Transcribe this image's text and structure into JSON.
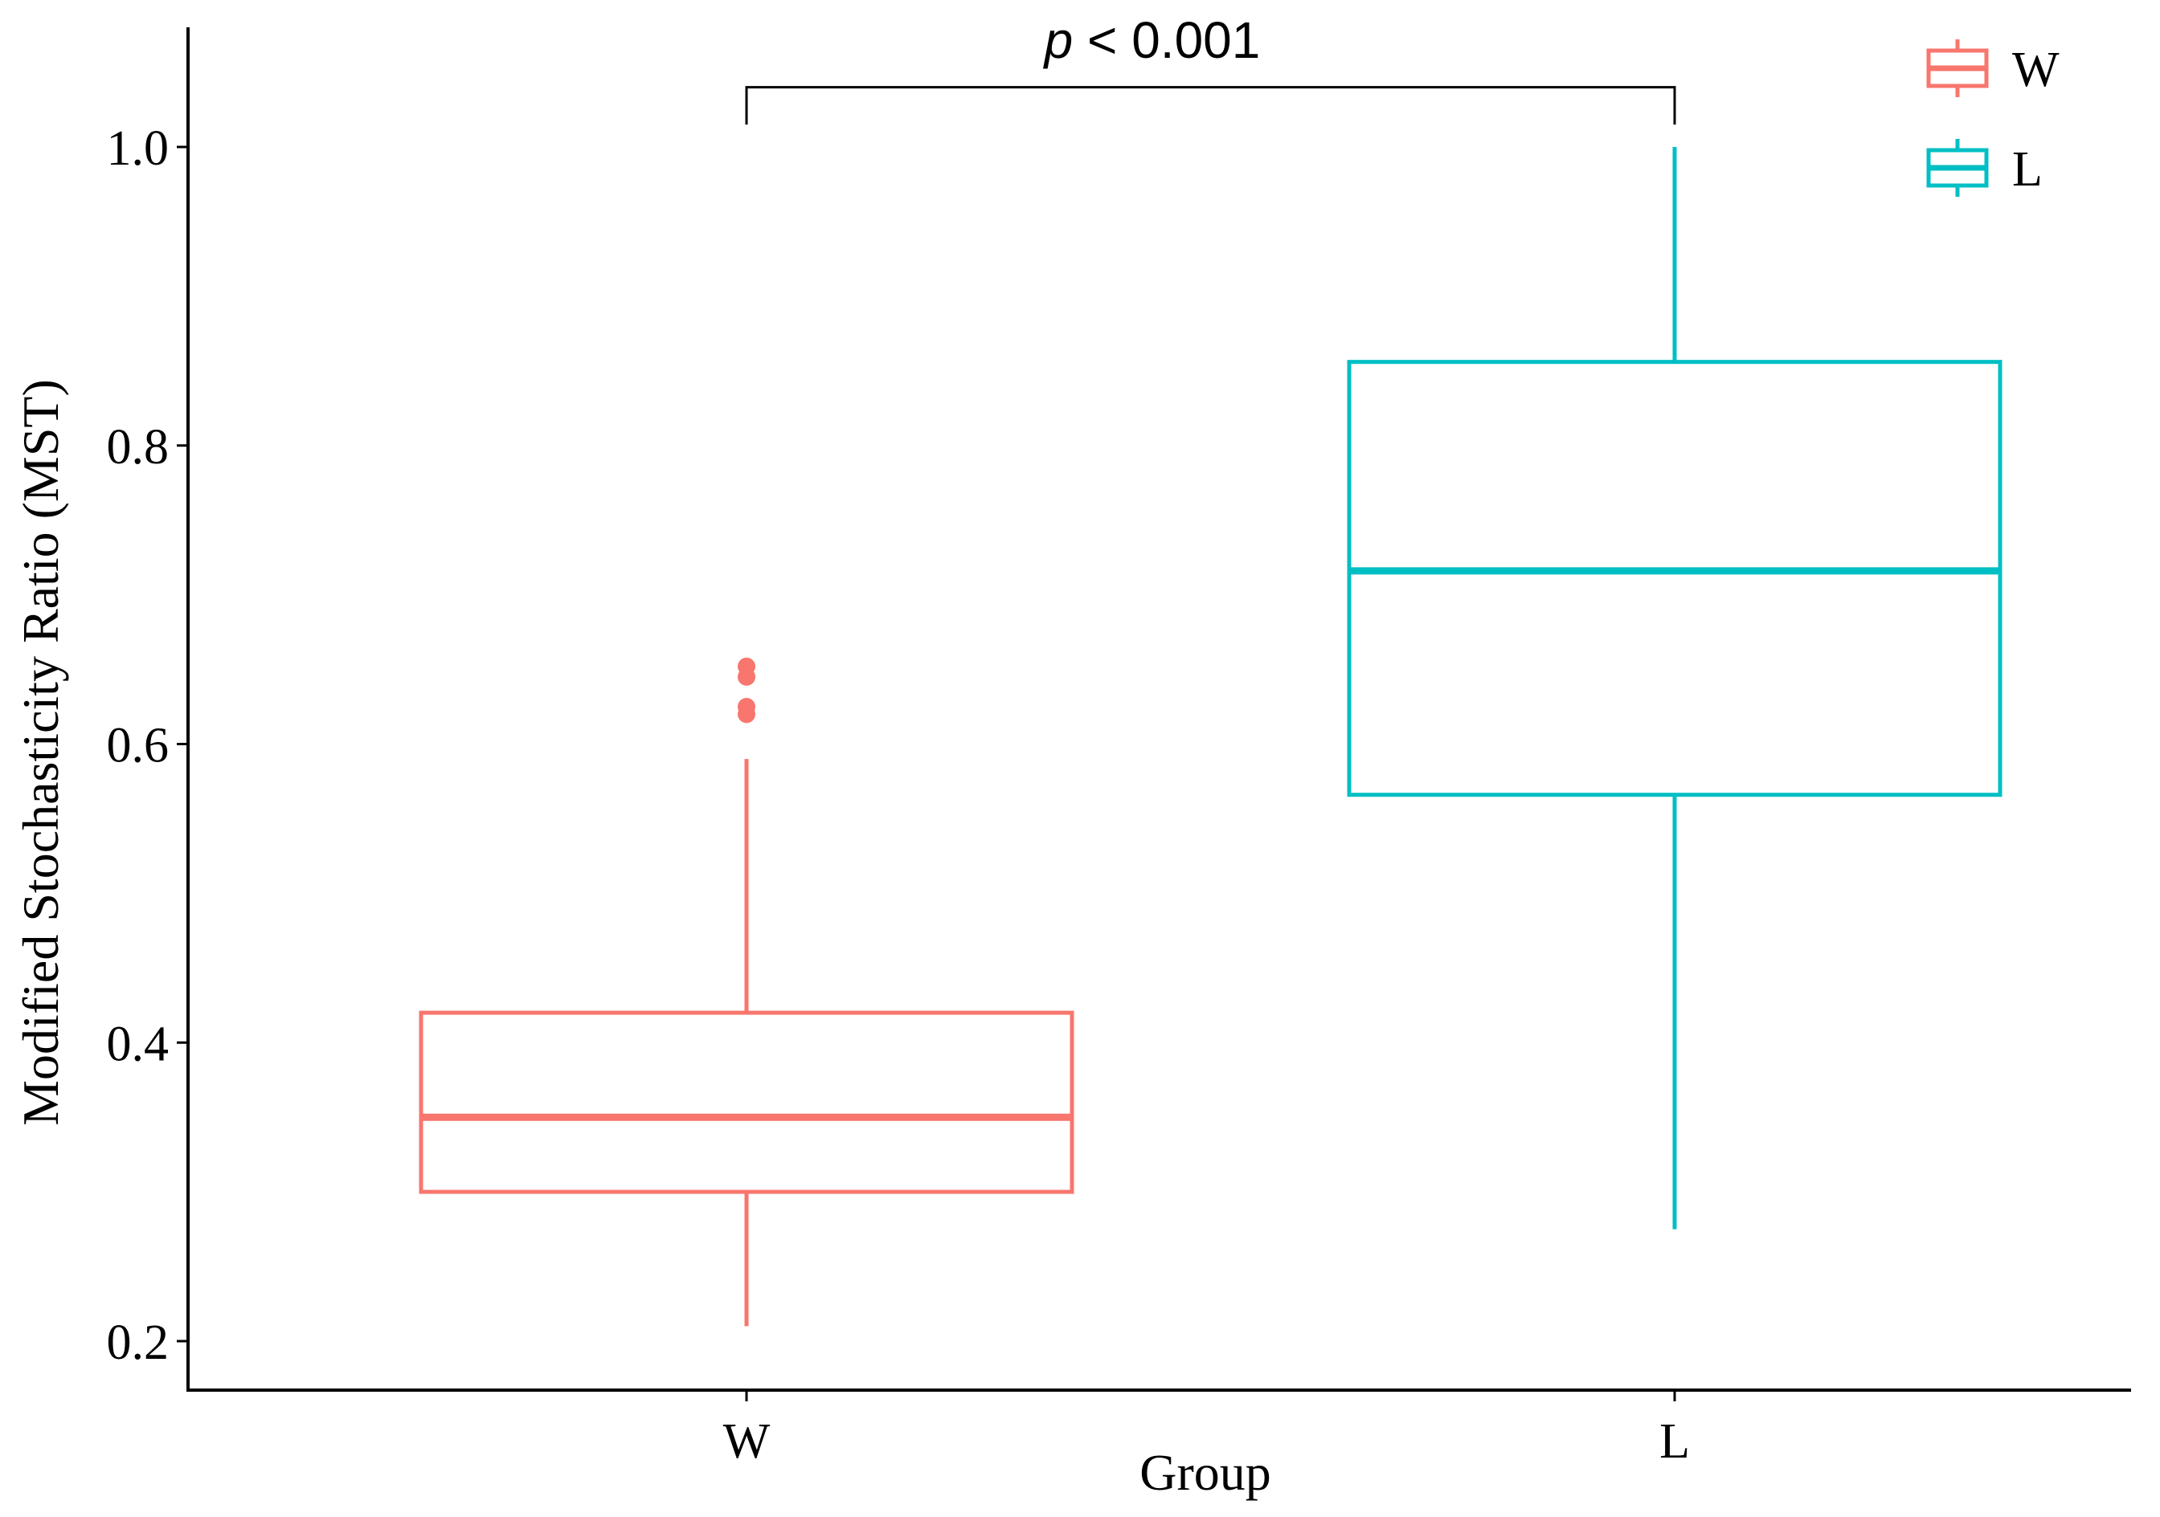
{
  "chart_data": {
    "type": "boxplot",
    "xlabel": "Group",
    "ylabel": "Modified Stochasticity Ratio (MST)",
    "categories": [
      "W",
      "L"
    ],
    "yticks": [
      "0.2",
      "0.4",
      "0.6",
      "0.8",
      "1.0"
    ],
    "ylim": [
      0.17,
      1.08
    ],
    "grid": false,
    "legend_position": "top-right",
    "boxes": [
      {
        "name": "W",
        "color": "#F8766D",
        "whisker_low": 0.21,
        "q1": 0.3,
        "median": 0.35,
        "q3": 0.42,
        "whisker_high": 0.59,
        "outliers": [
          0.652,
          0.645,
          0.625,
          0.62
        ]
      },
      {
        "name": "L",
        "color": "#00BFC4",
        "whisker_low": 0.275,
        "q1": 0.566,
        "median": 0.716,
        "q3": 0.856,
        "whisker_high": 1.0,
        "outliers": []
      }
    ],
    "annotation": {
      "p_symbol": "p",
      "p_rest": " < 0.001",
      "bracket_y": 1.04,
      "bracket_drop_y": 1.015
    },
    "legend": [
      {
        "label": "W",
        "color": "#F8766D"
      },
      {
        "label": "L",
        "color": "#00BFC4"
      }
    ]
  }
}
